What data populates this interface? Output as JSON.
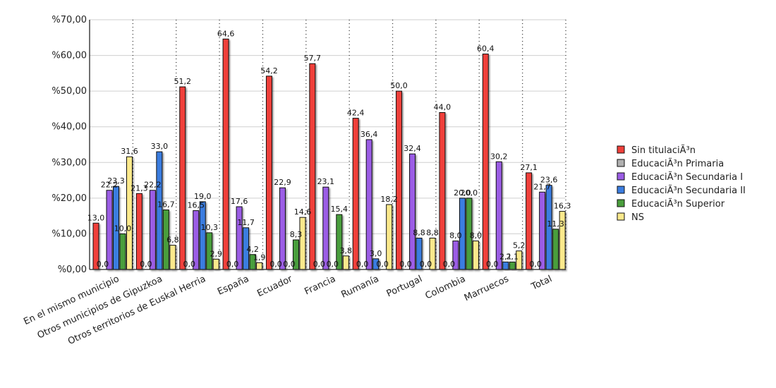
{
  "chart_data": {
    "type": "bar",
    "categories": [
      "En el mismo municipio",
      "Otros municipios de Gipuzkoa",
      "Otros territorios de Euskal Herria",
      "España",
      "Ecuador",
      "Francia",
      "Rumanía",
      "Portugal",
      "Colombia",
      "Marruecos",
      "Total"
    ],
    "series": [
      {
        "name": "Sin titulaciÃ³n",
        "color": "#f0403a",
        "values": [
          13.0,
          21.3,
          51.2,
          64.6,
          54.2,
          57.7,
          42.4,
          50.0,
          44.0,
          60.4,
          27.1
        ],
        "labels": [
          "13,0",
          "21,3",
          "51,2",
          "64,6",
          "54,2",
          "57,7",
          "42,4",
          "50,0",
          "44,0",
          "60,4",
          "27,1"
        ]
      },
      {
        "name": "EducaciÃ³n Primaria",
        "color": "#b0b0b0",
        "values": [
          0,
          0,
          0,
          0,
          0,
          0,
          0,
          0,
          0,
          0,
          0
        ],
        "labels": [
          "0,0",
          "0,0",
          "0,0",
          "0,0",
          "0,0",
          "0,0",
          "0,0",
          "0,0",
          "0,0",
          "0,0",
          "0,0"
        ]
      },
      {
        "name": "EducaciÃ³n Secundaria I",
        "color": "#9b5de5",
        "values": [
          22.2,
          22.2,
          16.5,
          17.6,
          22.9,
          23.1,
          36.4,
          32.4,
          8.0,
          30.2,
          21.7
        ],
        "labels": [
          "22,2",
          "22,2",
          "16,5",
          "17,6",
          "22,9",
          "23,1",
          "36,4",
          "32,4",
          "8,0",
          "30,2",
          "21,7"
        ]
      },
      {
        "name": "EducaciÃ³n Secundaria II",
        "color": "#3b7de0",
        "values": [
          23.3,
          33.0,
          19.0,
          11.7,
          0,
          0,
          3.0,
          8.8,
          20.0,
          2.1,
          23.6
        ],
        "labels": [
          "23,3",
          "33,0",
          "19,0",
          "11,7",
          "0,0",
          "0,0",
          "3,0",
          "8,8",
          "20,0",
          "2,1",
          "23,6"
        ]
      },
      {
        "name": "EducaciÃ³n Superior",
        "color": "#4a9e3c",
        "values": [
          10.0,
          16.7,
          10.3,
          4.2,
          8.3,
          15.4,
          0,
          0,
          20.0,
          2.1,
          11.3
        ],
        "labels": [
          "10,0",
          "16,7",
          "10,3",
          "4,2",
          "8,3",
          "15,4",
          "0,0",
          "0,0",
          "20,0",
          "2,1",
          "11,3"
        ]
      },
      {
        "name": "NS",
        "color": "#fbe98c",
        "values": [
          31.6,
          6.8,
          2.9,
          1.9,
          14.6,
          3.8,
          18.2,
          8.8,
          8.0,
          5.2,
          16.3
        ],
        "labels": [
          "31,6",
          "6,8",
          "2,9",
          "1,9",
          "14,6",
          "3,8",
          "18,2",
          "8,8",
          "8,0",
          "5,2",
          "16,3"
        ]
      }
    ],
    "yticks": [
      "%0,00",
      "%10,00",
      "%20,00",
      "%30,00",
      "%40,00",
      "%50,00",
      "%60,00",
      "%70,00"
    ],
    "ylim": [
      0,
      70
    ],
    "grid": true,
    "legend_position": "right"
  }
}
